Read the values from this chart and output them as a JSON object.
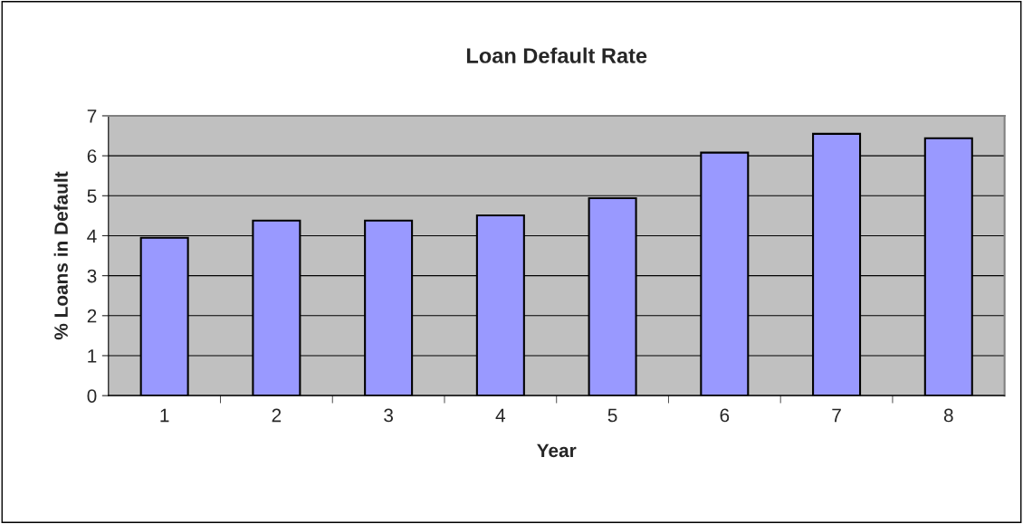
{
  "chart_data": {
    "type": "bar",
    "title": "Loan Default Rate",
    "xlabel": "Year",
    "ylabel": "% Loans in Default",
    "categories": [
      "1",
      "2",
      "3",
      "4",
      "5",
      "6",
      "7",
      "8"
    ],
    "values": [
      3.95,
      4.38,
      4.38,
      4.51,
      4.94,
      6.08,
      6.55,
      6.44
    ],
    "color": "#9999ff",
    "ylim": [
      0,
      7
    ],
    "yticks": [
      0,
      1,
      2,
      3,
      4,
      5,
      6,
      7
    ],
    "grid": "y"
  }
}
